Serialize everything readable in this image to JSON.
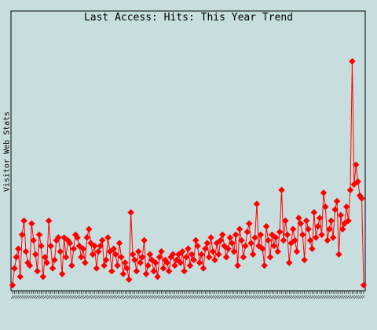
{
  "chart_data": {
    "type": "line",
    "title": "Last Access: Hits: This Year Trend",
    "xlabel": "",
    "ylabel": "Visitor Web Stats",
    "grid": false,
    "legend": "none",
    "colors": {
      "background": "#c8dede",
      "series": "#ff0000",
      "frame": "#000000"
    },
    "marker": "diamond",
    "ylim": [
      0,
      100
    ],
    "series": [
      {
        "values": [
          2,
          8,
          12,
          15,
          5,
          20,
          25,
          14,
          10,
          9,
          24,
          18,
          13,
          7,
          20,
          16,
          5,
          12,
          10,
          25,
          16,
          8,
          11,
          18,
          19,
          14,
          6,
          19,
          12,
          18,
          17,
          9,
          15,
          20,
          19,
          16,
          12,
          15,
          10,
          19,
          22,
          17,
          13,
          16,
          8,
          14,
          16,
          18,
          9,
          11,
          19,
          14,
          7,
          15,
          13,
          9,
          17,
          12,
          6,
          10,
          8,
          4,
          28,
          13,
          11,
          7,
          14,
          10,
          12,
          18,
          6,
          9,
          13,
          11,
          7,
          10,
          5,
          12,
          14,
          8,
          11,
          10,
          7,
          12,
          13,
          9,
          11,
          13,
          10,
          14,
          7,
          12,
          15,
          9,
          13,
          11,
          18,
          16,
          10,
          13,
          8,
          15,
          17,
          12,
          19,
          14,
          11,
          17,
          13,
          18,
          20,
          16,
          12,
          15,
          19,
          17,
          14,
          20,
          9,
          22,
          18,
          12,
          16,
          21,
          24,
          17,
          13,
          19,
          31,
          16,
          20,
          15,
          9,
          23,
          18,
          12,
          20,
          16,
          19,
          14,
          21,
          36,
          18,
          25,
          20,
          10,
          17,
          22,
          18,
          14,
          26,
          24,
          20,
          11,
          25,
          22,
          18,
          15,
          28,
          19,
          23,
          26,
          20,
          35,
          30,
          18,
          22,
          25,
          19,
          29,
          32,
          13,
          27,
          22,
          24,
          30,
          25,
          36,
          82,
          38,
          45,
          39,
          34,
          33,
          2
        ]
      }
    ]
  }
}
